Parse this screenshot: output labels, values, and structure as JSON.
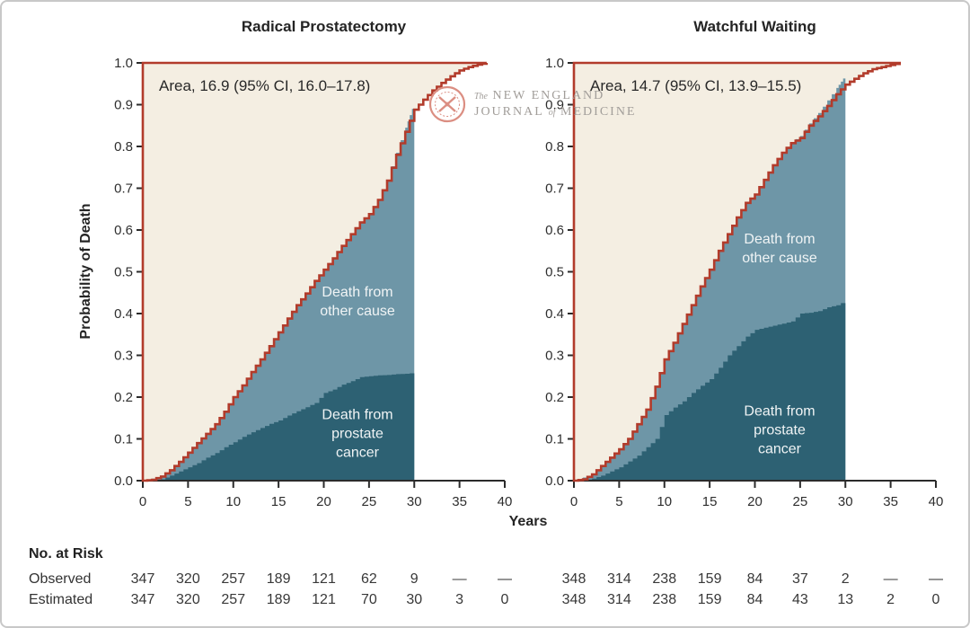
{
  "figure": {
    "y_axis_title": "Probability of Death",
    "x_axis_title": "Years",
    "watermark": {
      "the": "The",
      "line1": "NEW ENGLAND",
      "journal": "JOURNAL",
      "of": "of",
      "medicine": "MEDICINE"
    },
    "colors": {
      "beige_area": "#f4eee2",
      "other_cause_area": "#6e96a7",
      "prostate_cancer_area": "#2d6173",
      "estimated_curve": "#b23b2b",
      "axis": "#2b2b2b",
      "logo_red": "#db8e82",
      "logo_gray": "#a19d99"
    }
  },
  "chart_data": [
    {
      "type": "area",
      "title": "Radical Prostatectomy",
      "annotation": "Area, 16.9 (95% CI, 16.0–17.8)",
      "area_estimate": {
        "value": 16.9,
        "ci_low": 16.0,
        "ci_high": 17.8
      },
      "xlabel": "Years",
      "ylabel": "Probability of Death",
      "xlim": [
        0,
        40
      ],
      "ylim": [
        0,
        1
      ],
      "x_ticks": [
        0,
        5,
        10,
        15,
        20,
        25,
        30,
        35,
        40
      ],
      "y_ticks": [
        "0.0",
        "0.1",
        "0.2",
        "0.3",
        "0.4",
        "0.5",
        "0.6",
        "0.7",
        "0.8",
        "0.9",
        "1.0"
      ],
      "cutoff_year": 30,
      "grid": false,
      "labels": {
        "other": [
          "Death from",
          "other cause"
        ],
        "cancer": [
          "Death from",
          "prostate",
          "cancer"
        ]
      },
      "series": [
        {
          "name": "Death from prostate cancer",
          "points": [
            [
              0,
              0
            ],
            [
              2,
              0.003
            ],
            [
              3,
              0.012
            ],
            [
              4,
              0.022
            ],
            [
              5,
              0.032
            ],
            [
              6,
              0.042
            ],
            [
              7,
              0.055
            ],
            [
              8,
              0.066
            ],
            [
              9,
              0.08
            ],
            [
              10,
              0.092
            ],
            [
              11,
              0.105
            ],
            [
              12,
              0.116
            ],
            [
              13,
              0.126
            ],
            [
              14,
              0.136
            ],
            [
              15,
              0.144
            ],
            [
              16,
              0.156
            ],
            [
              17,
              0.166
            ],
            [
              18,
              0.176
            ],
            [
              19,
              0.186
            ],
            [
              20,
              0.21
            ],
            [
              21,
              0.218
            ],
            [
              22,
              0.23
            ],
            [
              23,
              0.238
            ],
            [
              24,
              0.248
            ],
            [
              25,
              0.25
            ],
            [
              26,
              0.252
            ],
            [
              27,
              0.253
            ],
            [
              28,
              0.255
            ],
            [
              29,
              0.256
            ],
            [
              30,
              0.258
            ]
          ]
        },
        {
          "name": "Death from any cause (observed)",
          "points": [
            [
              0,
              0
            ],
            [
              2,
              0.01
            ],
            [
              3,
              0.025
            ],
            [
              4,
              0.045
            ],
            [
              5,
              0.067
            ],
            [
              6,
              0.09
            ],
            [
              7,
              0.112
            ],
            [
              8,
              0.135
            ],
            [
              9,
              0.165
            ],
            [
              10,
              0.2
            ],
            [
              11,
              0.228
            ],
            [
              12,
              0.26
            ],
            [
              13,
              0.29
            ],
            [
              14,
              0.322
            ],
            [
              15,
              0.355
            ],
            [
              16,
              0.388
            ],
            [
              17,
              0.42
            ],
            [
              18,
              0.448
            ],
            [
              19,
              0.478
            ],
            [
              20,
              0.505
            ],
            [
              21,
              0.532
            ],
            [
              22,
              0.562
            ],
            [
              23,
              0.59
            ],
            [
              24,
              0.618
            ],
            [
              25,
              0.638
            ],
            [
              26,
              0.672
            ],
            [
              27,
              0.72
            ],
            [
              28,
              0.785
            ],
            [
              29,
              0.845
            ],
            [
              29.5,
              0.875
            ],
            [
              30,
              0.905
            ]
          ]
        },
        {
          "name": "Estimated cumulative incidence of death",
          "points": [
            [
              0,
              0
            ],
            [
              1,
              0.002
            ],
            [
              2,
              0.01
            ],
            [
              3,
              0.025
            ],
            [
              4,
              0.045
            ],
            [
              5,
              0.067
            ],
            [
              6,
              0.09
            ],
            [
              7,
              0.112
            ],
            [
              8,
              0.135
            ],
            [
              9,
              0.165
            ],
            [
              10,
              0.2
            ],
            [
              11,
              0.228
            ],
            [
              12,
              0.26
            ],
            [
              13,
              0.29
            ],
            [
              14,
              0.322
            ],
            [
              15,
              0.355
            ],
            [
              16,
              0.388
            ],
            [
              17,
              0.42
            ],
            [
              18,
              0.448
            ],
            [
              19,
              0.478
            ],
            [
              20,
              0.505
            ],
            [
              21,
              0.532
            ],
            [
              22,
              0.562
            ],
            [
              23,
              0.59
            ],
            [
              24,
              0.618
            ],
            [
              25,
              0.638
            ],
            [
              26,
              0.672
            ],
            [
              27,
              0.718
            ],
            [
              28,
              0.78
            ],
            [
              29,
              0.835
            ],
            [
              30,
              0.888
            ],
            [
              31,
              0.912
            ],
            [
              32,
              0.934
            ],
            [
              33,
              0.952
            ],
            [
              34,
              0.968
            ],
            [
              35,
              0.982
            ],
            [
              36,
              0.99
            ],
            [
              37,
              0.996
            ],
            [
              38,
              1.0
            ]
          ]
        }
      ]
    },
    {
      "type": "area",
      "title": "Watchful Waiting",
      "annotation": "Area, 14.7 (95% CI, 13.9–15.5)",
      "area_estimate": {
        "value": 14.7,
        "ci_low": 13.9,
        "ci_high": 15.5
      },
      "xlabel": "Years",
      "ylabel": "Probability of Death",
      "xlim": [
        0,
        40
      ],
      "ylim": [
        0,
        1
      ],
      "x_ticks": [
        0,
        5,
        10,
        15,
        20,
        25,
        30,
        35,
        40
      ],
      "y_ticks": [
        "0.0",
        "0.1",
        "0.2",
        "0.3",
        "0.4",
        "0.5",
        "0.6",
        "0.7",
        "0.8",
        "0.9",
        "1.0"
      ],
      "cutoff_year": 30,
      "grid": false,
      "labels": {
        "other": [
          "Death from",
          "other cause"
        ],
        "cancer": [
          "Death from",
          "prostate",
          "cancer"
        ]
      },
      "series": [
        {
          "name": "Death from prostate cancer",
          "points": [
            [
              0,
              0
            ],
            [
              2,
              0.005
            ],
            [
              3,
              0.012
            ],
            [
              4,
              0.022
            ],
            [
              5,
              0.032
            ],
            [
              6,
              0.046
            ],
            [
              7,
              0.06
            ],
            [
              8,
              0.08
            ],
            [
              9,
              0.1
            ],
            [
              10,
              0.157
            ],
            [
              11,
              0.175
            ],
            [
              12,
              0.19
            ],
            [
              13,
              0.21
            ],
            [
              14,
              0.227
            ],
            [
              15,
              0.243
            ],
            [
              16,
              0.27
            ],
            [
              17,
              0.3
            ],
            [
              18,
              0.322
            ],
            [
              19,
              0.345
            ],
            [
              20,
              0.361
            ],
            [
              21,
              0.366
            ],
            [
              22,
              0.371
            ],
            [
              23,
              0.376
            ],
            [
              24,
              0.381
            ],
            [
              25,
              0.4
            ],
            [
              26,
              0.402
            ],
            [
              27,
              0.406
            ],
            [
              28,
              0.415
            ],
            [
              29,
              0.42
            ],
            [
              30,
              0.43
            ]
          ]
        },
        {
          "name": "Death from any cause (observed)",
          "points": [
            [
              0,
              0
            ],
            [
              2,
              0.015
            ],
            [
              3,
              0.035
            ],
            [
              4,
              0.055
            ],
            [
              5,
              0.075
            ],
            [
              6,
              0.1
            ],
            [
              7,
              0.135
            ],
            [
              8,
              0.17
            ],
            [
              9,
              0.225
            ],
            [
              10,
              0.29
            ],
            [
              11,
              0.33
            ],
            [
              12,
              0.375
            ],
            [
              13,
              0.42
            ],
            [
              14,
              0.465
            ],
            [
              15,
              0.505
            ],
            [
              16,
              0.55
            ],
            [
              17,
              0.59
            ],
            [
              18,
              0.63
            ],
            [
              19,
              0.665
            ],
            [
              20,
              0.685
            ],
            [
              21,
              0.72
            ],
            [
              22,
              0.755
            ],
            [
              23,
              0.785
            ],
            [
              24,
              0.81
            ],
            [
              25,
              0.825
            ],
            [
              26,
              0.855
            ],
            [
              27,
              0.88
            ],
            [
              28,
              0.91
            ],
            [
              29,
              0.94
            ],
            [
              29.5,
              0.955
            ],
            [
              30,
              0.97
            ]
          ]
        },
        {
          "name": "Estimated cumulative incidence of death",
          "points": [
            [
              0,
              0
            ],
            [
              1,
              0.003
            ],
            [
              2,
              0.015
            ],
            [
              3,
              0.035
            ],
            [
              4,
              0.055
            ],
            [
              5,
              0.075
            ],
            [
              6,
              0.1
            ],
            [
              7,
              0.135
            ],
            [
              8,
              0.17
            ],
            [
              9,
              0.225
            ],
            [
              10,
              0.29
            ],
            [
              11,
              0.33
            ],
            [
              12,
              0.375
            ],
            [
              13,
              0.42
            ],
            [
              14,
              0.465
            ],
            [
              15,
              0.505
            ],
            [
              16,
              0.55
            ],
            [
              17,
              0.59
            ],
            [
              18,
              0.63
            ],
            [
              19,
              0.665
            ],
            [
              20,
              0.685
            ],
            [
              21,
              0.72
            ],
            [
              22,
              0.755
            ],
            [
              23,
              0.785
            ],
            [
              24,
              0.808
            ],
            [
              25,
              0.82
            ],
            [
              26,
              0.85
            ],
            [
              27,
              0.872
            ],
            [
              28,
              0.897
            ],
            [
              29,
              0.925
            ],
            [
              30,
              0.948
            ],
            [
              31,
              0.962
            ],
            [
              32,
              0.975
            ],
            [
              33,
              0.985
            ],
            [
              34,
              0.99
            ],
            [
              35,
              0.995
            ],
            [
              36,
              1.0
            ]
          ]
        }
      ]
    }
  ],
  "risk_table": {
    "header": "No. at Risk",
    "row_labels": [
      "Observed",
      "Estimated"
    ],
    "left": {
      "observed": [
        "347",
        "320",
        "257",
        "189",
        "121",
        "62",
        "9",
        "—",
        "—"
      ],
      "estimated": [
        "347",
        "320",
        "257",
        "189",
        "121",
        "70",
        "30",
        "3",
        "0"
      ]
    },
    "right": {
      "observed": [
        "348",
        "314",
        "238",
        "159",
        "84",
        "37",
        "2",
        "—",
        "—"
      ],
      "estimated": [
        "348",
        "314",
        "238",
        "159",
        "84",
        "43",
        "13",
        "2",
        "0"
      ]
    }
  }
}
